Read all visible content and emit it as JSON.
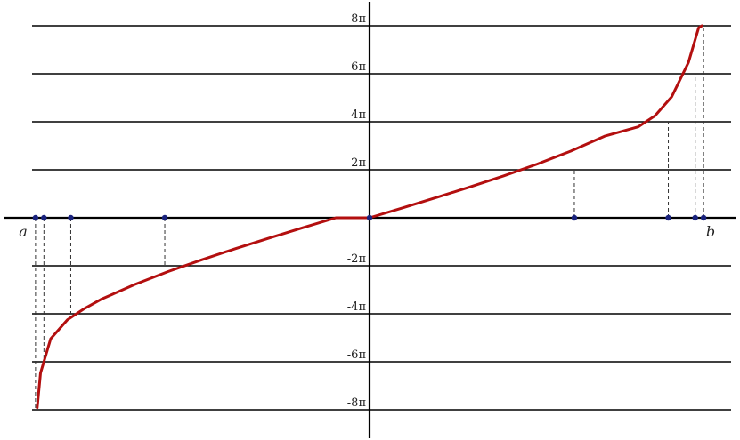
{
  "chart_data": {
    "type": "line",
    "title": "",
    "xlabel": "",
    "ylabel": "",
    "xlim": [
      -1,
      1
    ],
    "ylim": [
      -8.8,
      8.8
    ],
    "y_unit": "π",
    "y_levels": [
      {
        "value": 8,
        "label": "8π"
      },
      {
        "value": 6,
        "label": "6π"
      },
      {
        "value": 4,
        "label": "4π"
      },
      {
        "value": 2,
        "label": "2π"
      },
      {
        "value": -2,
        "label": "-2π"
      },
      {
        "value": -4,
        "label": "-4π"
      },
      {
        "value": -6,
        "label": "-6π"
      },
      {
        "value": -8,
        "label": "-8π"
      }
    ],
    "endpoints": {
      "left": "a",
      "right": "b"
    },
    "series": [
      {
        "x": [
          -0.99,
          -0.98,
          -0.95,
          -0.9,
          -0.85,
          -0.8,
          -0.7,
          -0.6,
          -0.5,
          -0.4,
          -0.3,
          -0.2,
          -0.1,
          0,
          0.1,
          0.2,
          0.3,
          0.4,
          0.5,
          0.6,
          0.7,
          0.8,
          0.85,
          0.9,
          0.95,
          0.98,
          0.99
        ],
        "y": [
          -7.91,
          -6.47,
          -5.04,
          -4.25,
          -3.79,
          -3.4,
          -2.78,
          -2.24,
          -1.75,
          -1.29,
          -0.85,
          -0.42,
          0,
          0,
          0.42,
          0.85,
          1.29,
          1.75,
          2.24,
          2.78,
          3.4,
          3.79,
          4.25,
          5.04,
          6.47,
          7.91,
          8.0
        ],
        "color": "#b30f0f"
      }
    ],
    "marked_points": [
      {
        "x": -0.995,
        "y": -8
      },
      {
        "x": -0.97,
        "y": -6
      },
      {
        "x": -0.89,
        "y": -4
      },
      {
        "x": -0.61,
        "y": -2
      },
      {
        "x": 0,
        "y": 0
      },
      {
        "x": 0.61,
        "y": 2
      },
      {
        "x": 0.89,
        "y": 4
      },
      {
        "x": 0.97,
        "y": 6
      },
      {
        "x": 0.995,
        "y": 8
      }
    ],
    "grid": true,
    "colors": {
      "curve": "#b30f0f",
      "points": "#1a237e",
      "lines": "#000000"
    }
  }
}
